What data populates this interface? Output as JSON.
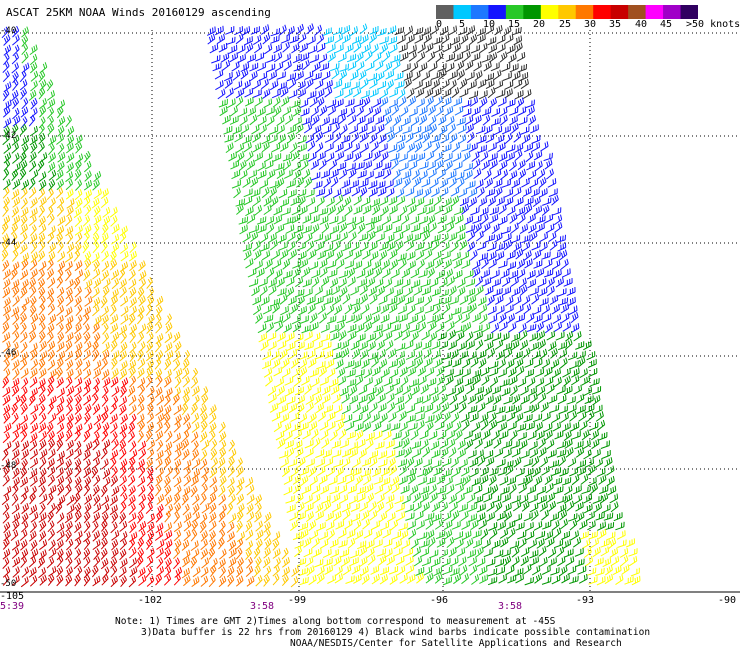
{
  "title": "ASCAT 25KM NOAA Winds 20160129 ascending",
  "colorbar": {
    "units": ">50 knots",
    "ticks": [
      "0",
      "5",
      "10",
      "15",
      "20",
      "25",
      "30",
      "35",
      "40",
      "45"
    ],
    "colors": [
      "#606060",
      "#00c8ff",
      "#1e78ff",
      "#1414ff",
      "#28c828",
      "#009600",
      "#ffff00",
      "#ffc800",
      "#ff7800",
      "#ff0000",
      "#c80000",
      "#a05020",
      "#ff00ff",
      "#a000c8",
      "#300060"
    ]
  },
  "map": {
    "lon_labels": [
      "-105",
      "-102",
      "-99",
      "-96",
      "-93",
      "-90"
    ],
    "lat_labels": [
      "-40",
      "-42",
      "-44",
      "-46",
      "-48",
      "-50"
    ],
    "time_labels": [
      "5:39",
      "3:58",
      "3:58"
    ]
  },
  "notes": {
    "line1": "Note: 1) Times are GMT 2)Times along bottom correspond to measurement at -45S",
    "line2": "3)Data buffer is 22 hrs from 20160129 4) Black wind barbs indicate possible contamination",
    "line3": "NOAA/NESDIS/Center for Satellite Applications and Research"
  }
}
